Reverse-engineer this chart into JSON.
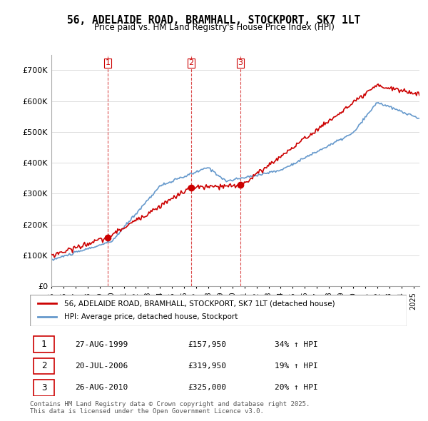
{
  "title": "56, ADELAIDE ROAD, BRAMHALL, STOCKPORT, SK7 1LT",
  "subtitle": "Price paid vs. HM Land Registry's House Price Index (HPI)",
  "legend_red": "56, ADELAIDE ROAD, BRAMHALL, STOCKPORT, SK7 1LT (detached house)",
  "legend_blue": "HPI: Average price, detached house, Stockport",
  "footer": "Contains HM Land Registry data © Crown copyright and database right 2025.\nThis data is licensed under the Open Government Licence v3.0.",
  "transactions": [
    {
      "num": 1,
      "date": "27-AUG-1999",
      "price": 157950,
      "hpi": "34% ↑ HPI"
    },
    {
      "num": 2,
      "date": "20-JUL-2006",
      "price": 319950,
      "hpi": "19% ↑ HPI"
    },
    {
      "num": 3,
      "date": "26-AUG-2010",
      "price": 325000,
      "hpi": "20% ↑ HPI"
    }
  ],
  "ylim": [
    0,
    750000
  ],
  "yticks": [
    0,
    100000,
    200000,
    300000,
    400000,
    500000,
    600000,
    700000
  ],
  "ytick_labels": [
    "£0",
    "£100K",
    "£200K",
    "£300K",
    "£400K",
    "£500K",
    "£600K",
    "£700K"
  ],
  "red_color": "#cc0000",
  "blue_color": "#6699cc",
  "marker_color_red": "#cc0000",
  "bg_color": "#ffffff",
  "grid_color": "#dddddd"
}
